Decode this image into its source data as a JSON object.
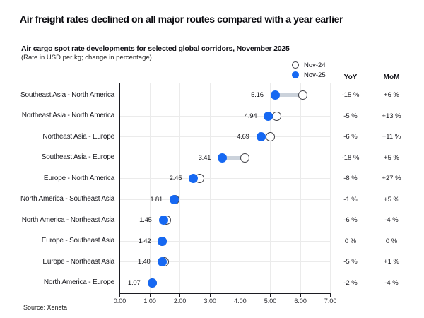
{
  "header": {
    "title": "Air freight rates declined on all major routes compared with a year earlier",
    "subtitle": "Air cargo spot rate developments for selected global corridors, November 2025",
    "subtitle_note": "(Rate in USD per kg; change in percentage)"
  },
  "legend": {
    "items": [
      {
        "label": "Nov-24",
        "style": "open"
      },
      {
        "label": "Nov-25",
        "style": "filled"
      }
    ]
  },
  "columns": {
    "yoy_header": "YoY",
    "mom_header": "MoM"
  },
  "source": "Source: Xeneta",
  "colors": {
    "accent_blue": "#1668F2",
    "connector_gray": "#CBD2DB",
    "open_circle_border": "#3f3f46",
    "gridline": "#ebebeb",
    "axis": "#1c1c22"
  },
  "chart_data": {
    "type": "scatter",
    "subtype": "dumbbell",
    "title": "Air cargo spot rate developments for selected global corridors, November 2025",
    "xlabel": "Rate in USD per kg",
    "categories": [
      "Southeast Asia - North America",
      "Northeast Asia - North America",
      "Northeast Asia - Europe",
      "Southeast Asia - Europe",
      "Europe - North America",
      "North America - Southeast Asia",
      "North America - Northeast Asia",
      "Europe - Southeast Asia",
      "Europe - Northeast Asia",
      "North America - Europe"
    ],
    "series": [
      {
        "name": "Nov-24",
        "marker": "open-circle",
        "values": [
          6.07,
          5.2,
          4.99,
          4.16,
          2.66,
          1.83,
          1.54,
          1.42,
          1.47,
          1.09
        ]
      },
      {
        "name": "Nov-25",
        "marker": "filled-circle",
        "values": [
          5.16,
          4.94,
          4.69,
          3.41,
          2.45,
          1.81,
          1.45,
          1.42,
          1.4,
          1.07
        ]
      }
    ],
    "value_labels": [
      "5.16",
      "4.94",
      "4.69",
      "3.41",
      "2.45",
      "1.81",
      "1.45",
      "1.42",
      "1.40",
      "1.07"
    ],
    "yoy": [
      "-15 %",
      "-5 %",
      "-6 %",
      "-18 %",
      "-8 %",
      "-1 %",
      "-6 %",
      "0 %",
      "-5 %",
      "-2 %"
    ],
    "mom": [
      "+6 %",
      "+13 %",
      "+11 %",
      "+5 %",
      "+27 %",
      "+5 %",
      "-4 %",
      "0 %",
      "+1 %",
      "-4 %"
    ],
    "xlim": [
      0,
      7
    ],
    "x_ticks": [
      "0.00",
      "1.00",
      "2.00",
      "3.00",
      "4.00",
      "5.00",
      "6.00",
      "7.00"
    ],
    "grid": true,
    "legend_position": "top-right"
  }
}
